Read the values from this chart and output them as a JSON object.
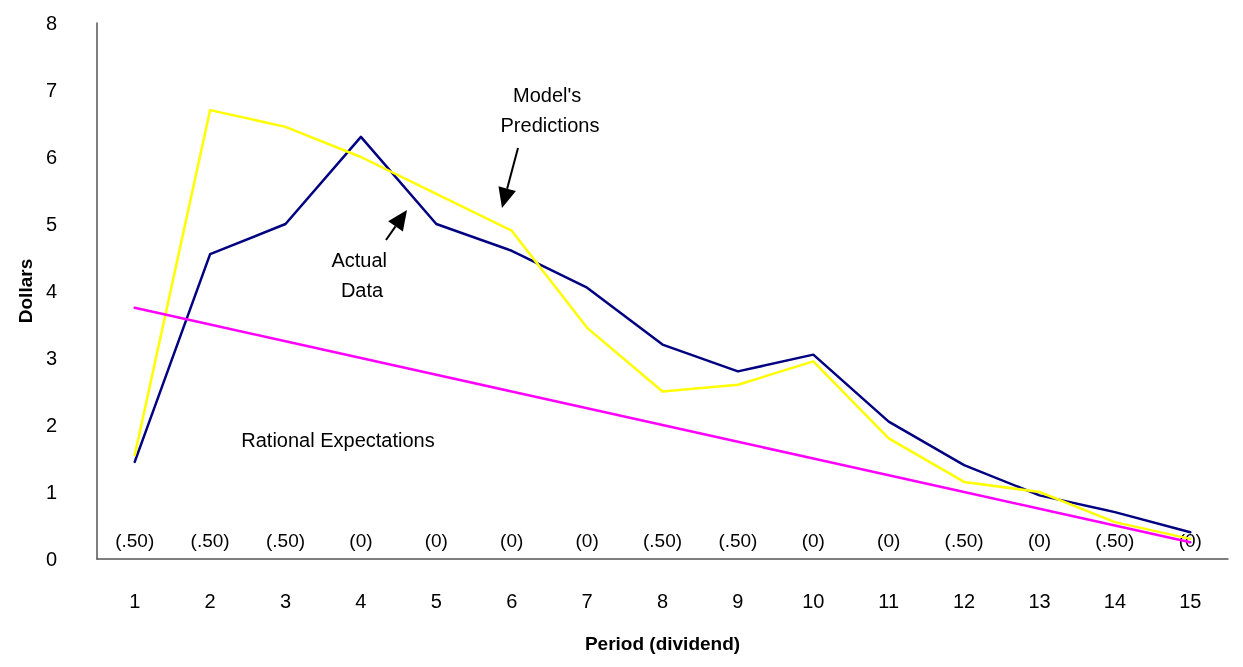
{
  "chart_data": {
    "type": "line",
    "xlabel": "Period (dividend)",
    "ylabel": "Dollars",
    "categories": [
      "1",
      "2",
      "3",
      "4",
      "5",
      "6",
      "7",
      "8",
      "9",
      "10",
      "11",
      "12",
      "13",
      "14",
      "15"
    ],
    "series": [
      {
        "color": "#000080",
        "values": [
          1.45,
          4.55,
          5.0,
          6.3,
          5.0,
          4.6,
          4.05,
          3.2,
          2.8,
          3.05,
          2.05,
          1.4,
          0.95,
          0.7,
          0.4
        ]
      },
      {
        "color": "#ffff00",
        "values": [
          1.55,
          6.7,
          6.45,
          6.0,
          5.45,
          4.9,
          3.45,
          2.5,
          2.6,
          2.95,
          1.8,
          1.15,
          1.0,
          0.55,
          0.3
        ]
      },
      {
        "color": "#ff00ff",
        "values": [
          3.75,
          3.5,
          3.25,
          3.0,
          2.75,
          2.5,
          2.25,
          2.0,
          1.75,
          1.5,
          1.25,
          1.0,
          0.75,
          0.5,
          0.25
        ]
      }
    ],
    "ylim": [
      0,
      8
    ],
    "yticks": [
      0,
      1,
      2,
      3,
      4,
      5,
      6,
      7,
      8
    ],
    "grid": false,
    "marker": "none",
    "line_style": "solid",
    "annotations": [
      "Model's Predictions",
      "Actual Data",
      "Rational Expectations",
      "(.50)",
      "(.50)",
      "(.50)",
      "(0)",
      "(0)",
      "(0)",
      "(0)",
      "(.50)",
      "(.50)",
      "(0)",
      "(0)",
      "(.50)",
      "(0)",
      "(.50)",
      "(0)"
    ]
  }
}
